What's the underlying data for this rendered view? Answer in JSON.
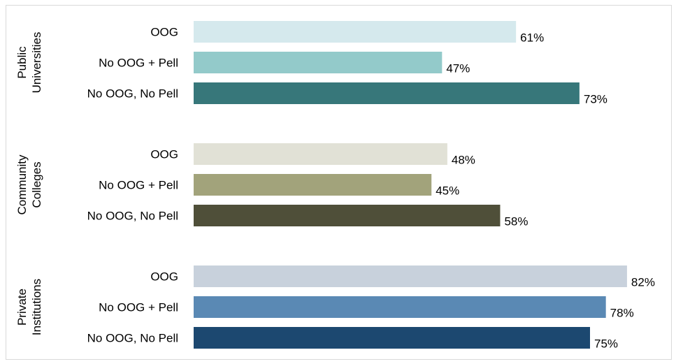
{
  "chart_data": {
    "type": "bar",
    "orientation": "horizontal",
    "grid": false,
    "xlim": [
      0,
      100
    ],
    "value_format": "percent",
    "groups": [
      {
        "label_lines": [
          "Public",
          "Universities"
        ],
        "bars": [
          {
            "category": "OOG",
            "value": 61,
            "label": "61%",
            "color": "#d5e9ed"
          },
          {
            "category": "No OOG + Pell",
            "value": 47,
            "label": "47%",
            "color": "#93caca"
          },
          {
            "category": "No OOG, No Pell",
            "value": 73,
            "label": "73%",
            "color": "#37777a"
          }
        ]
      },
      {
        "label_lines": [
          "Community",
          "Colleges"
        ],
        "bars": [
          {
            "category": "OOG",
            "value": 48,
            "label": "48%",
            "color": "#e1e1d6"
          },
          {
            "category": "No OOG + Pell",
            "value": 45,
            "label": "45%",
            "color": "#a2a37b"
          },
          {
            "category": "No OOG, No Pell",
            "value": 58,
            "label": "58%",
            "color": "#4f4f39"
          }
        ]
      },
      {
        "label_lines": [
          "Private",
          "Institutions"
        ],
        "bars": [
          {
            "category": "OOG",
            "value": 82,
            "label": "82%",
            "color": "#c8d1dc"
          },
          {
            "category": "No OOG + Pell",
            "value": 78,
            "label": "78%",
            "color": "#5a89b4"
          },
          {
            "category": "No OOG, No Pell",
            "value": 75,
            "label": "75%",
            "color": "#1c4870"
          }
        ]
      }
    ]
  }
}
